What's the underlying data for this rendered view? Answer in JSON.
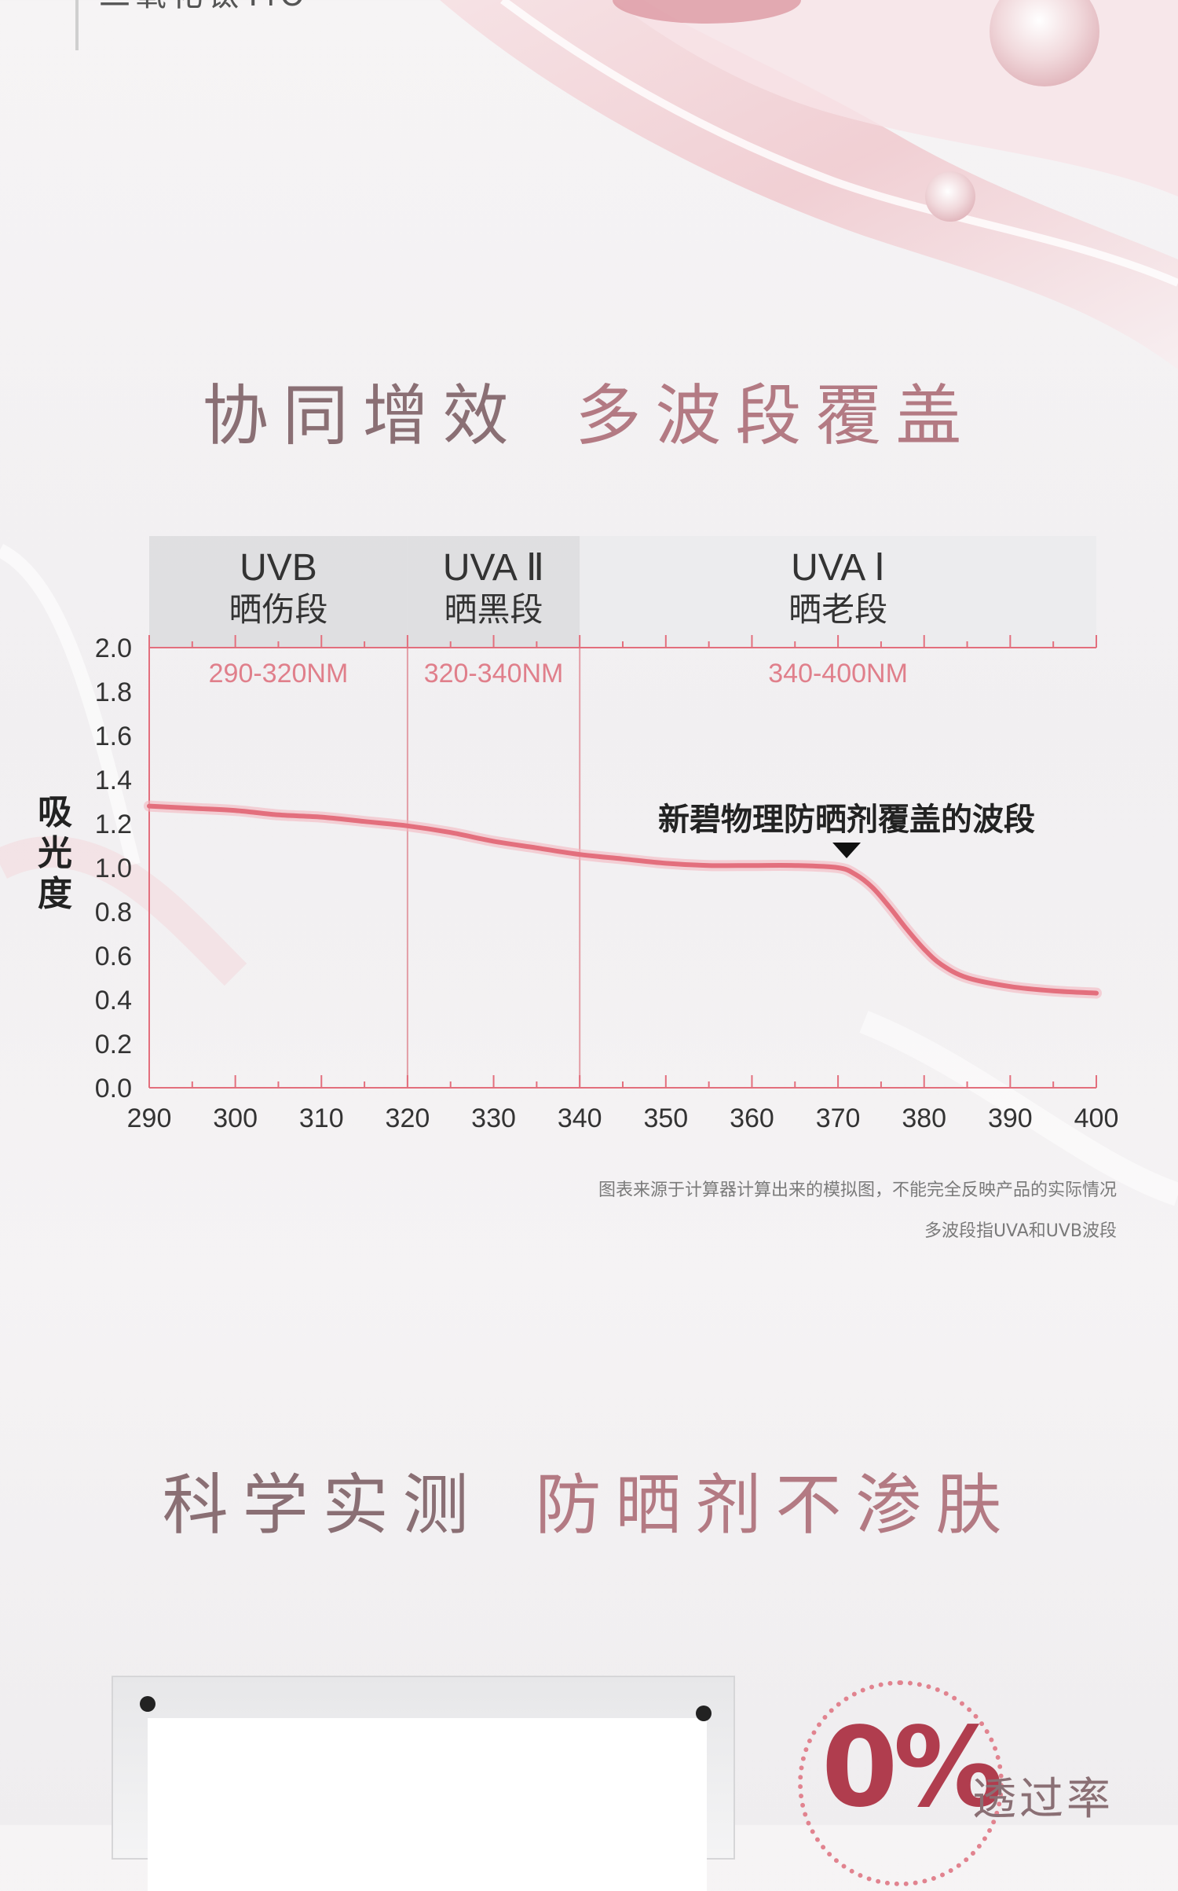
{
  "header": {
    "top_caption": "二氧化钛TiO"
  },
  "sections": {
    "title1": {
      "part1": "协同增效",
      "part2": "多波段覆盖"
    },
    "title2": {
      "part1": "科学实测",
      "part2": "防晒剂不渗肤"
    }
  },
  "chart_data": {
    "type": "line",
    "ylabel": "吸光度",
    "xlabel": "",
    "xlim": [
      290,
      400
    ],
    "ylim": [
      0.0,
      2.0
    ],
    "x_ticks": [
      290,
      300,
      310,
      320,
      330,
      340,
      350,
      360,
      370,
      380,
      390,
      400
    ],
    "y_ticks": [
      "0.0",
      "0.2",
      "0.4",
      "0.6",
      "0.8",
      "1.0",
      "1.2",
      "1.4",
      "1.6",
      "1.8",
      "2.0"
    ],
    "bands": [
      {
        "name": "UVB",
        "desc": "晒伤段",
        "range_label": "290-320NM",
        "range": [
          290,
          320
        ]
      },
      {
        "name": "UVA Ⅱ",
        "desc": "晒黑段",
        "range_label": "320-340NM",
        "range": [
          320,
          340
        ]
      },
      {
        "name": "UVA Ⅰ",
        "desc": "晒老段",
        "range_label": "340-400NM",
        "range": [
          340,
          400
        ]
      }
    ],
    "series": [
      {
        "x": [
          290,
          295,
          300,
          305,
          310,
          315,
          320,
          325,
          330,
          335,
          340,
          345,
          350,
          355,
          360,
          365,
          370,
          372,
          374,
          376,
          378,
          380,
          382,
          385,
          390,
          395,
          400
        ],
        "values": [
          1.28,
          1.27,
          1.26,
          1.24,
          1.23,
          1.21,
          1.19,
          1.16,
          1.12,
          1.09,
          1.06,
          1.04,
          1.02,
          1.01,
          1.01,
          1.01,
          1.0,
          0.97,
          0.91,
          0.82,
          0.72,
          0.63,
          0.56,
          0.5,
          0.46,
          0.44,
          0.43
        ],
        "color": "#e36f7d"
      }
    ],
    "annotation": {
      "text": "新碧物理防晒剂覆盖的波段",
      "x": 371
    },
    "colors": {
      "line": "#e36f7d",
      "grid": "#e39ea6",
      "axis": "#e36f7d",
      "band_bg": "#dcdcde",
      "band_bg_light": "#ebebed"
    },
    "grid": true
  },
  "footnotes": {
    "line1": "图表来源于计算器计算出来的模拟图，不能完全反映产品的实际情况",
    "line2": "多波段指UVA和UVB波段"
  },
  "badge": {
    "value": "0%",
    "label": "透过率",
    "color": "#b03d4e"
  }
}
